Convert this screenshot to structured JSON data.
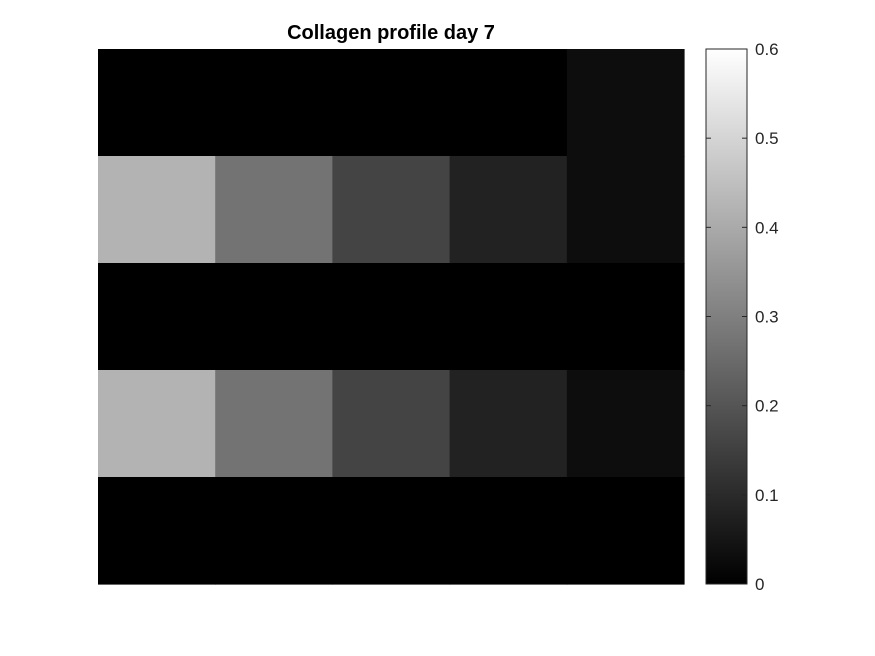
{
  "chart_data": {
    "type": "heatmap",
    "title": "Collagen profile day 7",
    "xlabel": "",
    "ylabel": "",
    "colormap": "gray",
    "rows": 5,
    "cols": 5,
    "values": [
      [
        0.0,
        0.0,
        0.0,
        0.0,
        0.03
      ],
      [
        0.42,
        0.27,
        0.16,
        0.08,
        0.03
      ],
      [
        0.0,
        0.0,
        0.0,
        0.0,
        0.0
      ],
      [
        0.42,
        0.27,
        0.16,
        0.08,
        0.03
      ],
      [
        0.0,
        0.0,
        0.0,
        0.0,
        0.0
      ]
    ],
    "colorbar": {
      "range": [
        0,
        0.6
      ],
      "ticks": [
        0,
        0.1,
        0.2,
        0.3,
        0.4,
        0.5,
        0.6
      ],
      "tick_labels": [
        "0",
        "0.1",
        "0.2",
        "0.3",
        "0.4",
        "0.5",
        "0.6"
      ]
    },
    "grid": false
  }
}
